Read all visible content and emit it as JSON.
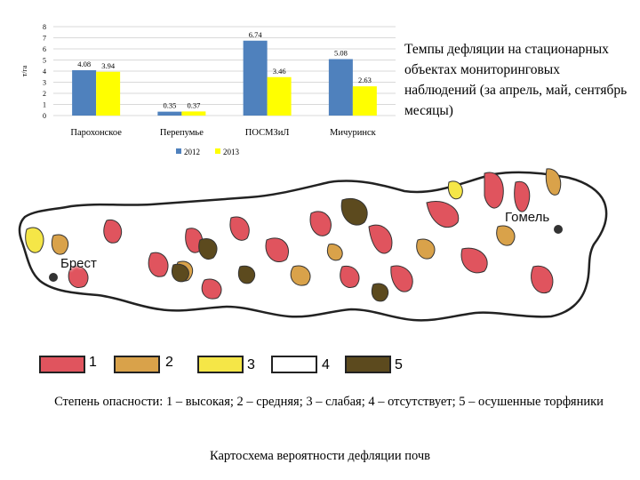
{
  "chart_data": {
    "type": "bar",
    "ylabel": "т/га",
    "ylim": [
      0,
      8
    ],
    "yticks": [
      "0",
      "1",
      "2",
      "3",
      "4",
      "5",
      "6",
      "7",
      "8"
    ],
    "categories": [
      "Парохонское",
      "Перепумье",
      "ПОСМЗиЛ",
      "Мичуринск"
    ],
    "series": [
      {
        "name": "2012",
        "color": "#4f81bd",
        "values": [
          4.08,
          0.35,
          6.74,
          5.08
        ],
        "labels": [
          "4.08",
          "0.35",
          "6.74",
          "5.08"
        ]
      },
      {
        "name": "2013",
        "color": "#ffff00",
        "values": [
          3.94,
          0.37,
          3.46,
          2.63
        ],
        "labels": [
          "3.94",
          "0.37",
          "3.46",
          "2.63"
        ]
      }
    ],
    "grid": true,
    "legend": "bottom"
  },
  "side_text": "Темпы дефляции на стационарных объектах мониторинговых наблюдений (за апрель, май, сентябрь месяцы)",
  "map": {
    "cities": [
      {
        "name": "Брест"
      },
      {
        "name": "Гомель"
      }
    ],
    "legend": [
      {
        "num": "1",
        "color": "#e0545e"
      },
      {
        "num": "2",
        "color": "#d9a24a"
      },
      {
        "num": "3",
        "color": "#f5e647"
      },
      {
        "num": "4",
        "color": "#ffffff"
      },
      {
        "num": "5",
        "color": "#5c4a1e"
      }
    ]
  },
  "caption": "Степень опасности: 1 – высокая; 2 – средняя; 3 – слабая; 4 – отсутствует; 5 – осушенные торфяники",
  "map_title": "Картосхема вероятности дефляции почв"
}
